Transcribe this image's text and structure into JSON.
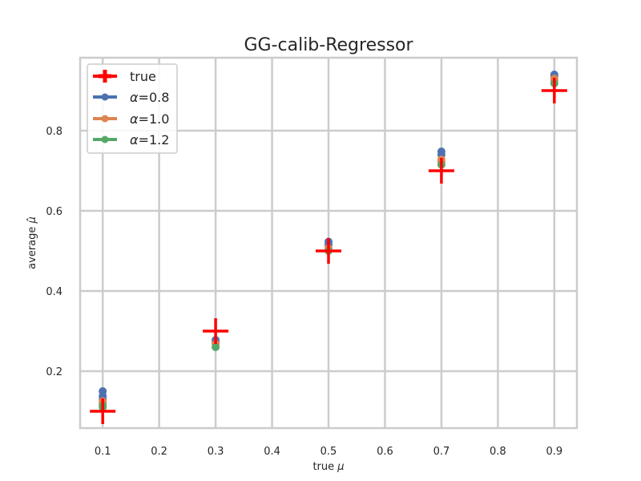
{
  "chart_data": {
    "type": "scatter",
    "title": "GG-calib-Regressor",
    "xlabel_prefix": "true ",
    "xlabel_symbol": "μ",
    "ylabel_prefix": "average ",
    "ylabel_symbol": "μ̂",
    "xlim": [
      0.06,
      0.94
    ],
    "ylim": [
      0.058,
      0.982
    ],
    "xticks": [
      0.1,
      0.2,
      0.3,
      0.4,
      0.5,
      0.6,
      0.7,
      0.8,
      0.9
    ],
    "xtick_labels": [
      "0.1",
      "0.2",
      "0.3",
      "0.4",
      "0.5",
      "0.6",
      "0.7",
      "0.8",
      "0.9"
    ],
    "yticks": [
      0.2,
      0.4,
      0.6,
      0.8
    ],
    "ytick_labels": [
      "0.2",
      "0.4",
      "0.6",
      "0.8"
    ],
    "grid": true,
    "legend_position": "top-left",
    "x": [
      0.1,
      0.3,
      0.5,
      0.7,
      0.9
    ],
    "series": [
      {
        "name": "true",
        "marker": "plus",
        "color": "#ff0000",
        "values": [
          0.1,
          0.3,
          0.5,
          0.7,
          0.9
        ]
      },
      {
        "name": "=0.8",
        "symbol": "α",
        "marker": "circle",
        "color": "#4c72b0",
        "points": [
          {
            "x": 0.1,
            "values": [
              0.15,
              0.138,
              0.13
            ]
          },
          {
            "x": 0.3,
            "values": [
              0.278,
              0.272
            ]
          },
          {
            "x": 0.5,
            "values": [
              0.523,
              0.515
            ]
          },
          {
            "x": 0.7,
            "values": [
              0.748,
              0.74
            ]
          },
          {
            "x": 0.9,
            "values": [
              0.94,
              0.935
            ]
          }
        ]
      },
      {
        "name": "=1.0",
        "symbol": "α",
        "marker": "circle",
        "color": "#dd8452",
        "points": [
          {
            "x": 0.1,
            "values": [
              0.125,
              0.12
            ]
          },
          {
            "x": 0.3,
            "values": [
              0.268
            ]
          },
          {
            "x": 0.5,
            "values": [
              0.507
            ]
          },
          {
            "x": 0.7,
            "values": [
              0.728,
              0.722
            ]
          },
          {
            "x": 0.9,
            "values": [
              0.93,
              0.925
            ]
          }
        ]
      },
      {
        "name": "=1.2",
        "symbol": "α",
        "marker": "circle",
        "color": "#55a868",
        "points": [
          {
            "x": 0.1,
            "values": [
              0.115,
              0.11
            ]
          },
          {
            "x": 0.3,
            "values": [
              0.26
            ]
          },
          {
            "x": 0.5,
            "values": [
              0.5
            ]
          },
          {
            "x": 0.7,
            "values": [
              0.715
            ]
          },
          {
            "x": 0.9,
            "values": [
              0.918
            ]
          }
        ]
      }
    ]
  }
}
